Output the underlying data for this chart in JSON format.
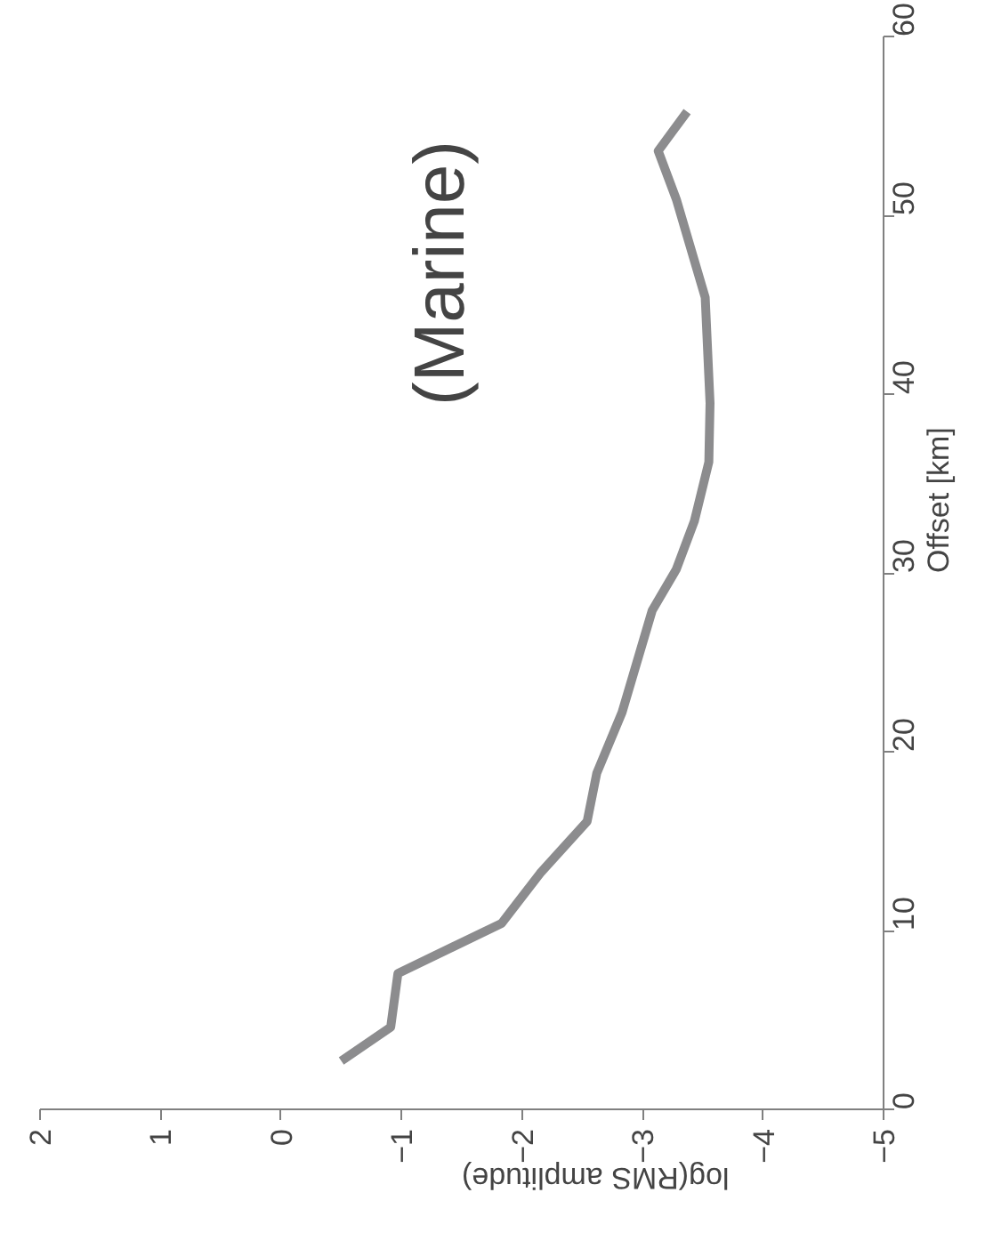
{
  "chart_data": {
    "type": "line",
    "xlabel": "log(RMS amplitude)",
    "ylabel": "Offset [km]",
    "annotations": [
      "(Marine)"
    ],
    "x": [
      -0.5,
      -0.91,
      -0.97,
      -1.83,
      -2.15,
      -2.54,
      -2.62,
      -2.83,
      -3.08,
      -3.28,
      -3.43,
      -3.55,
      -3.56,
      -3.52,
      -3.28,
      -3.13,
      -3.37
    ],
    "series": [
      {
        "color": "#8c8c8e",
        "values": [
          2.7,
          4.6,
          7.6,
          10.4,
          13.2,
          16.1,
          18.8,
          22.2,
          27.9,
          30.2,
          32.9,
          36.2,
          39.5,
          45.4,
          50.9,
          53.6,
          55.8
        ]
      }
    ],
    "xlim": [
      2,
      -5
    ],
    "xticks": [
      2,
      1,
      0,
      -1,
      -2,
      -3,
      -4,
      -5
    ],
    "ylim": [
      0,
      60
    ],
    "yticks": [
      0,
      10,
      20,
      30,
      40,
      50,
      60
    ],
    "grid": false
  }
}
